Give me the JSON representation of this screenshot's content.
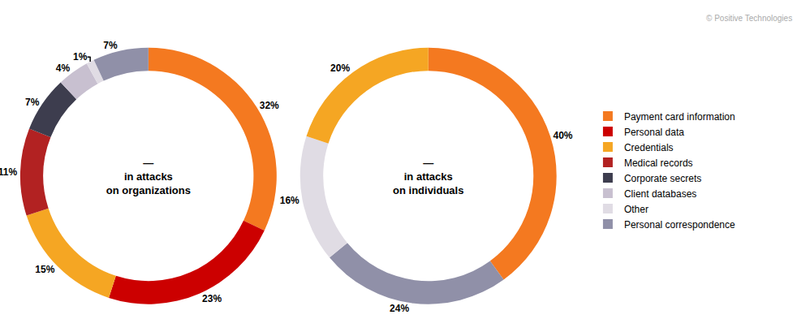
{
  "chart_data": [
    {
      "type": "pie",
      "title": "in attacks\non organizations",
      "annotations": [
        "—"
      ],
      "categories": [
        "Payment card information",
        "Personal data",
        "Credentials",
        "Medical records",
        "Corporate secrets",
        "Client databases",
        "Other",
        "Personal correspondence"
      ],
      "values": [
        32,
        23,
        15,
        11,
        7,
        4,
        1,
        7
      ],
      "value_labels": [
        "32%",
        "23%",
        "15%",
        "11%",
        "7%",
        "4%",
        "1%",
        "7%"
      ],
      "colors": [
        "#F47920",
        "#CC0000",
        "#F5A623",
        "#B22222",
        "#3D3D4E",
        "#C8C0D0",
        "#E0DCE4",
        "#9090A8"
      ],
      "data_labels": true
    },
    {
      "type": "pie",
      "title": "in attacks\non individuals",
      "annotations": [
        "—",
        "© Positive Technologies"
      ],
      "categories": [
        "Payment card information",
        "Personal correspondence",
        "Other",
        "Credentials"
      ],
      "values": [
        40,
        24,
        16,
        20
      ],
      "value_labels": [
        "40%",
        "24%",
        "16%",
        "20%"
      ],
      "colors": [
        "#F47920",
        "#9090A8",
        "#E0DCE4",
        "#F5A623"
      ],
      "data_labels": true
    }
  ]
}
